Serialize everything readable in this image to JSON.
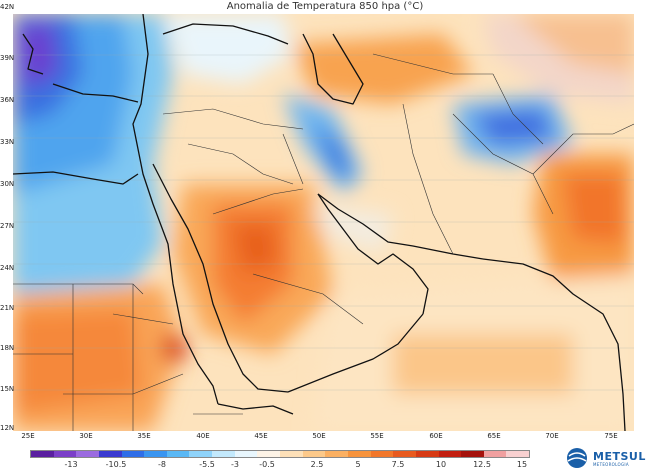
{
  "title": "Anomalia de Temperatura 850 hpa (°C)",
  "lat_labels": [
    "42N",
    "39N",
    "36N",
    "33N",
    "30N",
    "27N",
    "24N",
    "21N",
    "18N",
    "15N",
    "12N"
  ],
  "lon_labels": [
    "25E",
    "30E",
    "35E",
    "40E",
    "45E",
    "50E",
    "55E",
    "60E",
    "65E",
    "70E",
    "75E"
  ],
  "colorbar": {
    "labels": [
      "-13",
      "-10.5",
      "-8",
      "-5.5",
      "-3",
      "-0.5",
      "2.5",
      "5",
      "7.5",
      "10",
      "12.5",
      "15"
    ],
    "colors": [
      "#5a1fa0",
      "#7b3fc8",
      "#9b6be0",
      "#3a3ad0",
      "#2f6ee8",
      "#3a95f0",
      "#5ab8f5",
      "#8fd3fa",
      "#c3e9fc",
      "#e8f6fd",
      "#fdf3e6",
      "#fde0b8",
      "#fcc98a",
      "#fbb062",
      "#f7933c",
      "#f2772a",
      "#e85a1e",
      "#d63a14",
      "#c21e10",
      "#a5120c",
      "#f0a0a0",
      "#f8d0d0"
    ]
  },
  "logo": {
    "name": "METSUL",
    "subtitle": "METEOROLOGIA"
  }
}
